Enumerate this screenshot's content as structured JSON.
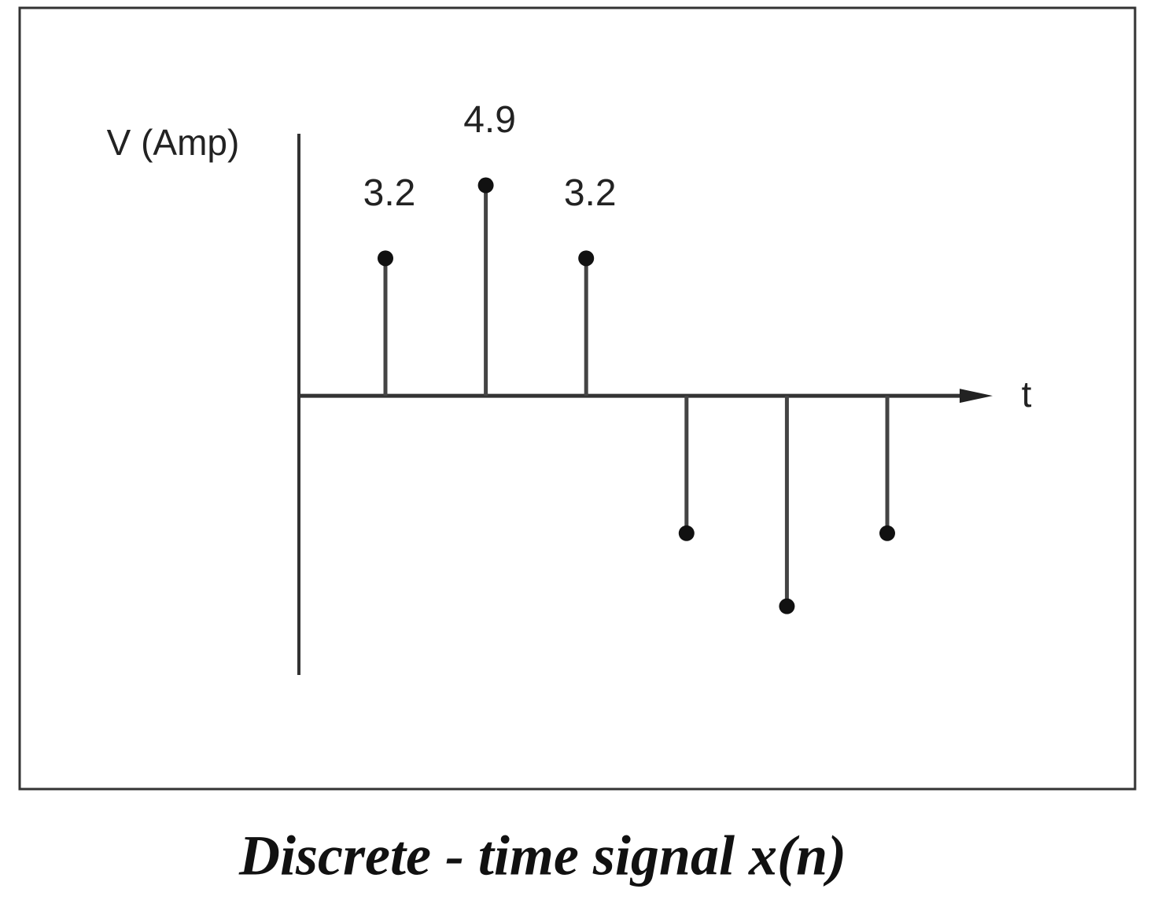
{
  "chart_data": {
    "type": "stem",
    "title": "Discrete - time signal x(n)",
    "y_label": "V (Amp)",
    "x_label": "t",
    "categories": [
      null,
      null,
      null,
      null,
      null,
      null
    ],
    "values": [
      3.2,
      4.9,
      3.2,
      -3.2,
      -4.9,
      -3.2
    ],
    "value_labels": [
      "3.2",
      "4.9",
      "3.2",
      null,
      null,
      null
    ],
    "color": "#111",
    "ylim": [
      -6.5,
      6.1
    ]
  }
}
